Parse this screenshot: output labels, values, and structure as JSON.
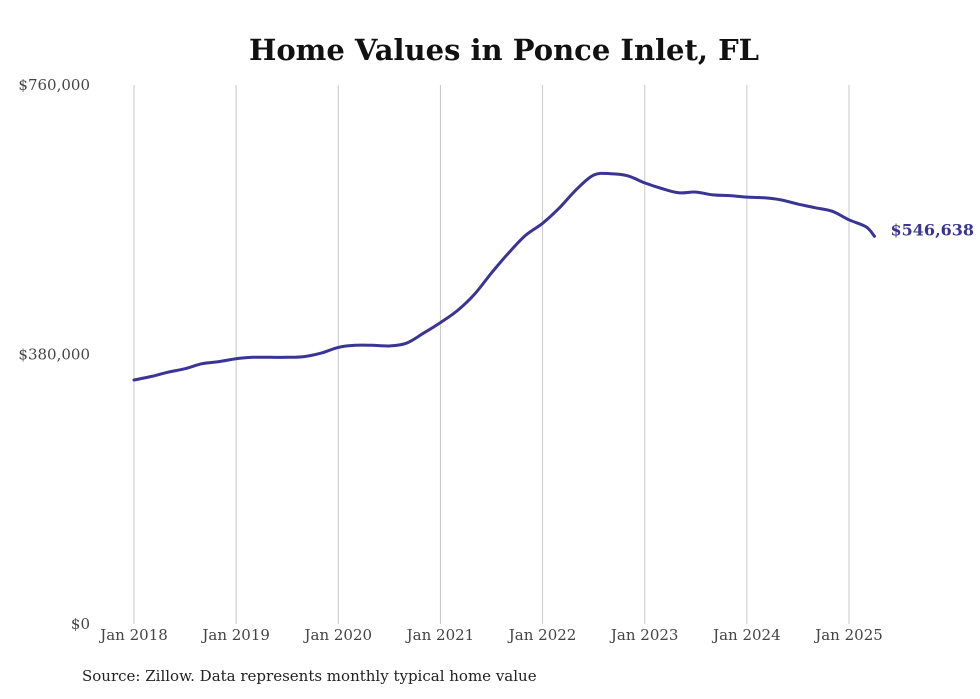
{
  "chart_data": {
    "type": "line",
    "title": "Home Values in Ponce Inlet, FL",
    "xlabel": "",
    "ylabel": "",
    "ylim": [
      0,
      760000
    ],
    "y_ticks": [
      0,
      380000,
      760000
    ],
    "y_tick_labels": [
      "$0",
      "$380,000",
      "$760,000"
    ],
    "x_ticks": [
      "2018-01",
      "2019-01",
      "2020-01",
      "2021-01",
      "2022-01",
      "2023-01",
      "2024-01",
      "2025-01"
    ],
    "x_tick_labels": [
      "Jan 2018",
      "Jan 2019",
      "Jan 2020",
      "Jan 2021",
      "Jan 2022",
      "Jan 2023",
      "Jan 2024",
      "Jan 2025"
    ],
    "grid": "vertical",
    "line_color": "#3a3494",
    "end_label": "$546,638",
    "series": [
      {
        "x": [
          "2018-01",
          "2018-03",
          "2018-05",
          "2018-07",
          "2018-09",
          "2018-11",
          "2019-01",
          "2019-03",
          "2019-05",
          "2019-07",
          "2019-09",
          "2019-11",
          "2020-01",
          "2020-03",
          "2020-05",
          "2020-07",
          "2020-09",
          "2020-11",
          "2021-01",
          "2021-03",
          "2021-05",
          "2021-07",
          "2021-09",
          "2021-11",
          "2022-01",
          "2022-03",
          "2022-05",
          "2022-07",
          "2022-09",
          "2022-11",
          "2023-01",
          "2023-03",
          "2023-05",
          "2023-07",
          "2023-09",
          "2023-11",
          "2024-01",
          "2024-03",
          "2024-05",
          "2024-07",
          "2024-09",
          "2024-11",
          "2025-01",
          "2025-03",
          "2025-04"
        ],
        "values": [
          344000,
          349000,
          355000,
          360000,
          367000,
          370000,
          374000,
          376000,
          376000,
          376000,
          377000,
          382000,
          390000,
          393000,
          393000,
          392000,
          396000,
          410000,
          425000,
          442000,
          465000,
          495000,
          523000,
          548000,
          565000,
          587000,
          613000,
          633000,
          635000,
          632000,
          622000,
          614000,
          608000,
          609000,
          605000,
          604000,
          602000,
          601000,
          598000,
          592000,
          587000,
          582000,
          570000,
          560000,
          546638
        ]
      }
    ]
  },
  "source_text": "Source: Zillow. Data represents monthly typical home value"
}
